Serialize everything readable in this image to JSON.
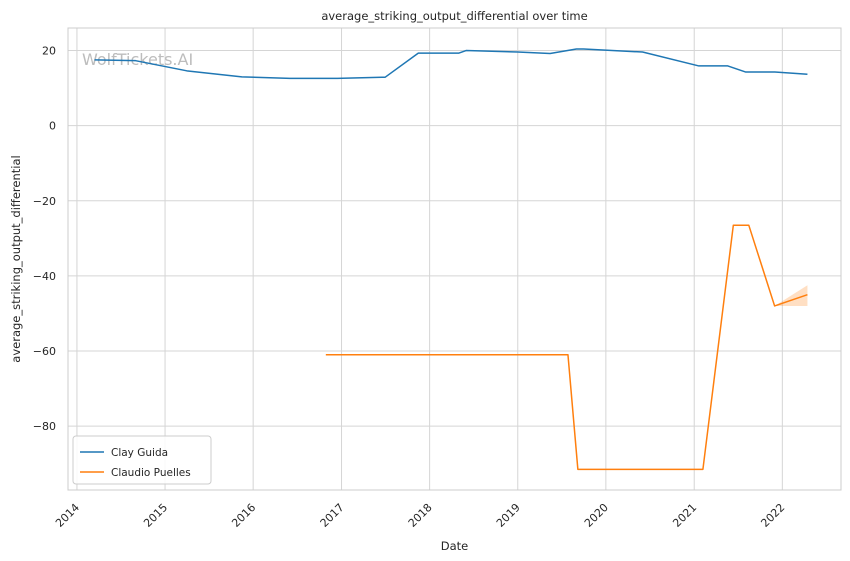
{
  "watermark": "WolfTickets.AI",
  "chart_data": {
    "type": "line",
    "title": "average_striking_output_differential over time",
    "xlabel": "Date",
    "ylabel": "average_striking_output_differential",
    "x_ticks": [
      "2014",
      "2015",
      "2016",
      "2017",
      "2018",
      "2019",
      "2020",
      "2021",
      "2022"
    ],
    "y_ticks": [
      20,
      0,
      -20,
      -40,
      -60,
      -80
    ],
    "xlim": [
      "2013-11-25",
      "2022-09-01"
    ],
    "ylim": [
      -97,
      26
    ],
    "grid": true,
    "legend_position": "lower-left",
    "series": [
      {
        "name": "Clay Guida",
        "color": "#1f77b4",
        "x": [
          "2014-03-15",
          "2014-09-01",
          "2015-04-01",
          "2015-11-15",
          "2016-06-01",
          "2016-12-15",
          "2017-07-01",
          "2017-11-15",
          "2018-05-01",
          "2018-06-01",
          "2019-01-01",
          "2019-05-15",
          "2019-09-01",
          "2019-10-01",
          "2020-06-01",
          "2021-01-20",
          "2021-05-20",
          "2021-08-01",
          "2021-12-01",
          "2022-04-15"
        ],
        "y": [
          17.5,
          17.3,
          14.6,
          13,
          12.6,
          12.6,
          12.9,
          19.3,
          19.3,
          20,
          19.6,
          19.2,
          20.4,
          20.4,
          19.6,
          15.9,
          15.9,
          14.3,
          14.3,
          13.7
        ]
      },
      {
        "name": "Claudio Puelles",
        "color": "#ff7f0e",
        "x": [
          "2016-10-28",
          "2019-07-28",
          "2019-09-07",
          "2021-02-06",
          "2021-06-12",
          "2021-08-15",
          "2021-11-30",
          "2022-04-15"
        ],
        "y": [
          -61,
          -61,
          -91.5,
          -91.5,
          -26.5,
          -26.5,
          -48,
          -45
        ],
        "band": {
          "x": [
            "2021-11-30",
            "2022-04-15"
          ],
          "lower": [
            -48,
            -48
          ],
          "upper": [
            -48,
            -42.5
          ]
        }
      }
    ]
  }
}
